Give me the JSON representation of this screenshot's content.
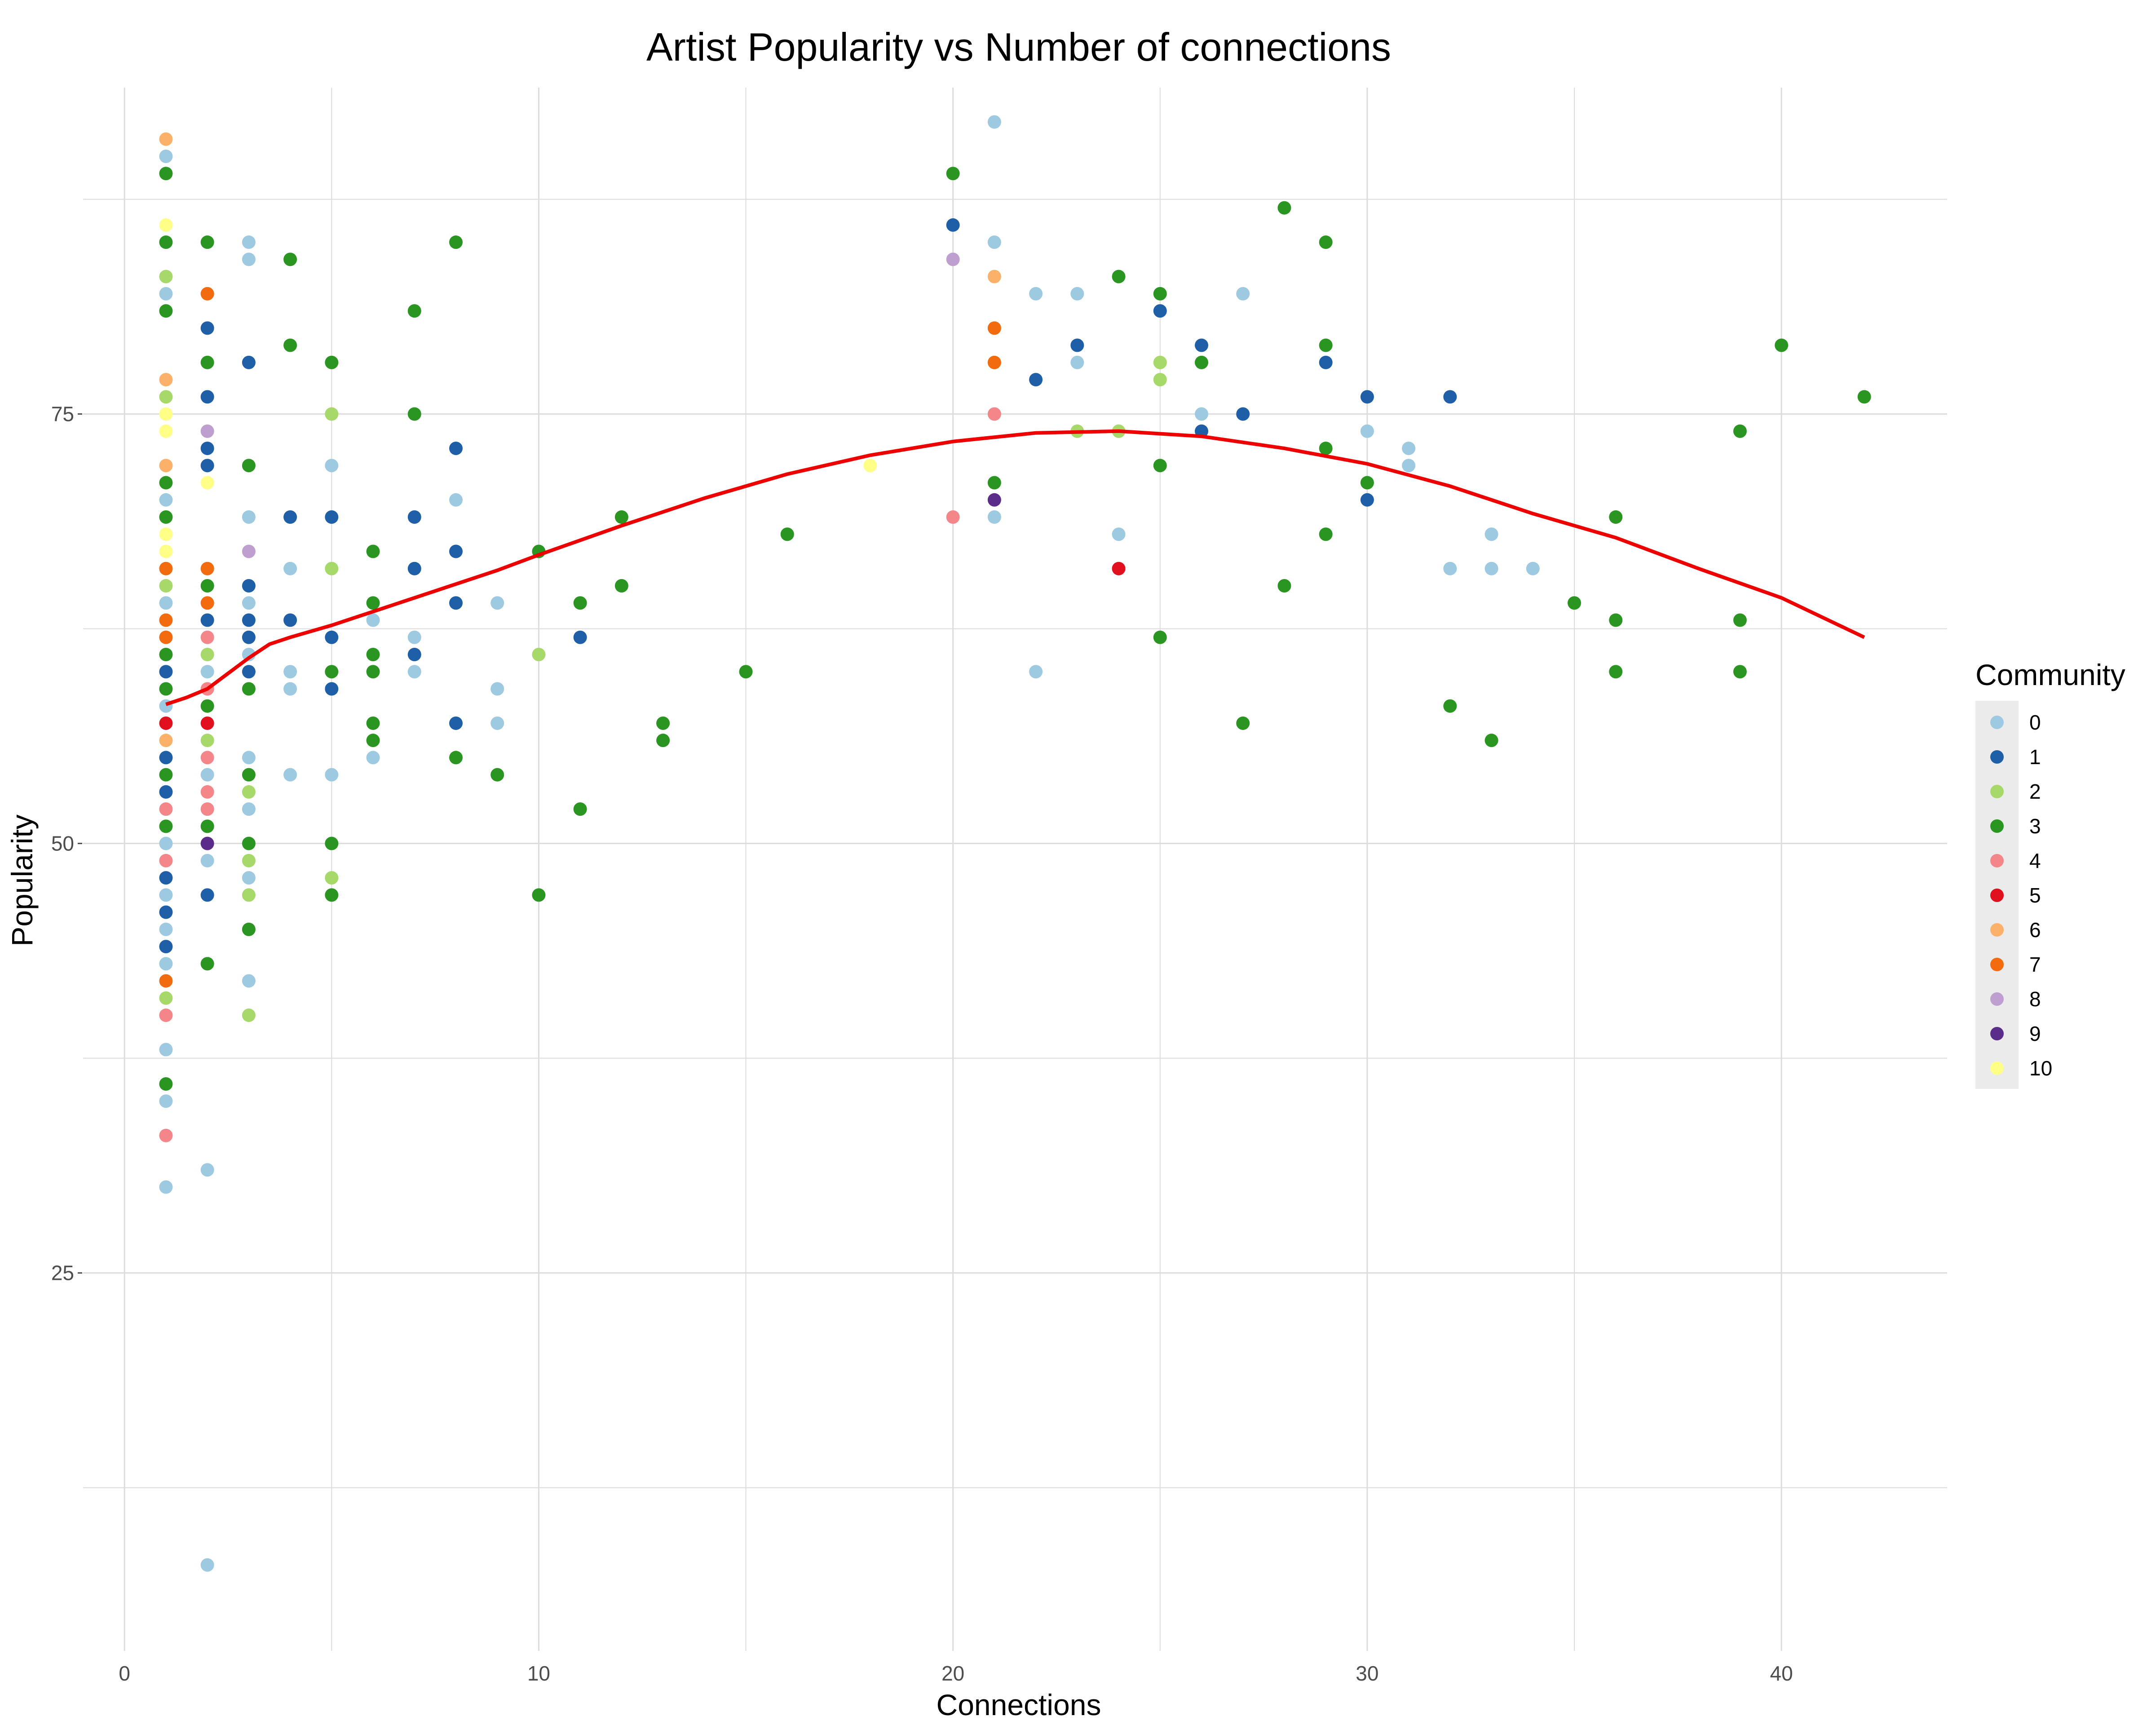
{
  "chart_data": {
    "type": "scatter",
    "title": "Artist Popularity vs Number of connections",
    "xlabel": "Connections",
    "ylabel": "Popularity",
    "xlim": [
      -1,
      44
    ],
    "ylim": [
      3,
      94
    ],
    "x_ticks": [
      0,
      10,
      20,
      30,
      40
    ],
    "y_ticks": [
      25,
      50,
      75
    ],
    "grid": true,
    "legend": {
      "title": "Community",
      "placement": "right",
      "entries": [
        {
          "label": "0",
          "color": "#9ecae1"
        },
        {
          "label": "1",
          "color": "#1f5fa8"
        },
        {
          "label": "2",
          "color": "#a6d96a"
        },
        {
          "label": "3",
          "color": "#2a9621"
        },
        {
          "label": "4",
          "color": "#f4868a"
        },
        {
          "label": "5",
          "color": "#e0101e"
        },
        {
          "label": "6",
          "color": "#fbb169"
        },
        {
          "label": "7",
          "color": "#f26b0f"
        },
        {
          "label": "8",
          "color": "#bf9fd0"
        },
        {
          "label": "9",
          "color": "#5a2d8a"
        },
        {
          "label": "10",
          "color": "#ffff88"
        }
      ]
    },
    "points": [
      [
        1,
        91,
        6
      ],
      [
        1,
        90,
        0
      ],
      [
        1,
        89,
        3
      ],
      [
        1,
        86,
        10
      ],
      [
        1,
        85,
        3
      ],
      [
        1,
        83,
        2
      ],
      [
        1,
        82,
        0
      ],
      [
        1,
        81,
        3
      ],
      [
        1,
        77,
        6
      ],
      [
        1,
        76,
        2
      ],
      [
        1,
        75,
        10
      ],
      [
        1,
        74,
        10
      ],
      [
        1,
        72,
        6
      ],
      [
        1,
        71,
        3
      ],
      [
        1,
        70,
        0
      ],
      [
        1,
        69,
        3
      ],
      [
        1,
        68,
        10
      ],
      [
        1,
        67,
        10
      ],
      [
        1,
        66,
        7
      ],
      [
        1,
        65,
        2
      ],
      [
        1,
        64,
        0
      ],
      [
        1,
        63,
        7
      ],
      [
        1,
        62,
        7
      ],
      [
        1,
        61,
        3
      ],
      [
        1,
        60,
        1
      ],
      [
        1,
        59,
        3
      ],
      [
        1,
        58,
        0
      ],
      [
        1,
        57,
        5
      ],
      [
        1,
        56,
        6
      ],
      [
        1,
        55,
        1
      ],
      [
        1,
        54,
        3
      ],
      [
        1,
        53,
        1
      ],
      [
        1,
        52,
        4
      ],
      [
        1,
        51,
        3
      ],
      [
        1,
        50,
        0
      ],
      [
        1,
        49,
        4
      ],
      [
        1,
        48,
        1
      ],
      [
        1,
        47,
        0
      ],
      [
        1,
        46,
        1
      ],
      [
        1,
        45,
        0
      ],
      [
        1,
        44,
        1
      ],
      [
        1,
        43,
        0
      ],
      [
        1,
        42,
        7
      ],
      [
        1,
        41,
        2
      ],
      [
        1,
        40,
        4
      ],
      [
        1,
        38,
        0
      ],
      [
        1,
        36,
        3
      ],
      [
        1,
        35,
        0
      ],
      [
        1,
        33,
        4
      ],
      [
        1,
        30,
        0
      ],
      [
        2,
        85,
        3
      ],
      [
        2,
        82,
        7
      ],
      [
        2,
        80,
        1
      ],
      [
        2,
        78,
        3
      ],
      [
        2,
        76,
        1
      ],
      [
        2,
        74,
        8
      ],
      [
        2,
        73,
        1
      ],
      [
        2,
        72,
        1
      ],
      [
        2,
        71,
        10
      ],
      [
        2,
        66,
        7
      ],
      [
        2,
        65,
        3
      ],
      [
        2,
        64,
        7
      ],
      [
        2,
        63,
        1
      ],
      [
        2,
        62,
        4
      ],
      [
        2,
        61,
        2
      ],
      [
        2,
        60,
        0
      ],
      [
        2,
        59,
        4
      ],
      [
        2,
        58,
        3
      ],
      [
        2,
        57,
        5
      ],
      [
        2,
        56,
        2
      ],
      [
        2,
        55,
        4
      ],
      [
        2,
        54,
        0
      ],
      [
        2,
        53,
        4
      ],
      [
        2,
        52,
        4
      ],
      [
        2,
        51,
        3
      ],
      [
        2,
        50,
        9
      ],
      [
        2,
        49,
        0
      ],
      [
        2,
        47,
        1
      ],
      [
        2,
        43,
        3
      ],
      [
        2,
        31,
        0
      ],
      [
        2,
        8,
        0
      ],
      [
        3,
        85,
        0
      ],
      [
        3,
        84,
        0
      ],
      [
        3,
        78,
        1
      ],
      [
        3,
        72,
        3
      ],
      [
        3,
        69,
        0
      ],
      [
        3,
        67,
        8
      ],
      [
        3,
        65,
        1
      ],
      [
        3,
        64,
        0
      ],
      [
        3,
        63,
        1
      ],
      [
        3,
        62,
        1
      ],
      [
        3,
        61,
        0
      ],
      [
        3,
        60,
        1
      ],
      [
        3,
        59,
        3
      ],
      [
        3,
        55,
        0
      ],
      [
        3,
        54,
        3
      ],
      [
        3,
        53,
        2
      ],
      [
        3,
        52,
        0
      ],
      [
        3,
        50,
        3
      ],
      [
        3,
        49,
        2
      ],
      [
        3,
        48,
        0
      ],
      [
        3,
        47,
        2
      ],
      [
        3,
        45,
        3
      ],
      [
        3,
        42,
        0
      ],
      [
        3,
        40,
        2
      ],
      [
        4,
        84,
        3
      ],
      [
        4,
        79,
        3
      ],
      [
        4,
        69,
        1
      ],
      [
        4,
        66,
        0
      ],
      [
        4,
        63,
        1
      ],
      [
        4,
        60,
        0
      ],
      [
        4,
        59,
        0
      ],
      [
        4,
        54,
        0
      ],
      [
        5,
        78,
        3
      ],
      [
        5,
        75,
        2
      ],
      [
        5,
        72,
        0
      ],
      [
        5,
        69,
        1
      ],
      [
        5,
        66,
        2
      ],
      [
        5,
        62,
        1
      ],
      [
        5,
        60,
        3
      ],
      [
        5,
        59,
        1
      ],
      [
        5,
        54,
        0
      ],
      [
        5,
        50,
        3
      ],
      [
        5,
        48,
        2
      ],
      [
        5,
        47,
        3
      ],
      [
        6,
        67,
        3
      ],
      [
        6,
        64,
        3
      ],
      [
        6,
        63,
        0
      ],
      [
        6,
        61,
        3
      ],
      [
        6,
        60,
        3
      ],
      [
        6,
        57,
        3
      ],
      [
        6,
        56,
        3
      ],
      [
        6,
        55,
        0
      ],
      [
        7,
        81,
        3
      ],
      [
        7,
        75,
        3
      ],
      [
        7,
        69,
        1
      ],
      [
        7,
        66,
        1
      ],
      [
        7,
        62,
        0
      ],
      [
        7,
        61,
        1
      ],
      [
        7,
        60,
        0
      ],
      [
        8,
        85,
        3
      ],
      [
        8,
        73,
        1
      ],
      [
        8,
        70,
        0
      ],
      [
        8,
        67,
        1
      ],
      [
        8,
        64,
        1
      ],
      [
        8,
        57,
        1
      ],
      [
        8,
        55,
        3
      ],
      [
        9,
        64,
        0
      ],
      [
        9,
        59,
        0
      ],
      [
        9,
        57,
        0
      ],
      [
        9,
        54,
        3
      ],
      [
        10,
        67,
        3
      ],
      [
        10,
        61,
        2
      ],
      [
        10,
        47,
        3
      ],
      [
        11,
        64,
        3
      ],
      [
        11,
        62,
        1
      ],
      [
        11,
        52,
        3
      ],
      [
        12,
        69,
        3
      ],
      [
        12,
        65,
        3
      ],
      [
        13,
        57,
        3
      ],
      [
        13,
        56,
        3
      ],
      [
        15,
        60,
        3
      ],
      [
        16,
        68,
        3
      ],
      [
        18,
        72,
        10
      ],
      [
        20,
        89,
        3
      ],
      [
        20,
        86,
        1
      ],
      [
        20,
        84,
        8
      ],
      [
        20,
        69,
        4
      ],
      [
        21,
        92,
        0
      ],
      [
        21,
        85,
        0
      ],
      [
        21,
        83,
        6
      ],
      [
        21,
        80,
        7
      ],
      [
        21,
        78,
        7
      ],
      [
        21,
        75,
        4
      ],
      [
        21,
        71,
        3
      ],
      [
        21,
        70,
        9
      ],
      [
        21,
        69,
        0
      ],
      [
        22,
        82,
        0
      ],
      [
        22,
        77,
        1
      ],
      [
        22,
        60,
        0
      ],
      [
        23,
        82,
        0
      ],
      [
        23,
        79,
        1
      ],
      [
        23,
        78,
        0
      ],
      [
        23,
        74,
        2
      ],
      [
        24,
        83,
        3
      ],
      [
        24,
        74,
        2
      ],
      [
        24,
        68,
        0
      ],
      [
        24,
        66,
        5
      ],
      [
        25,
        82,
        3
      ],
      [
        25,
        81,
        1
      ],
      [
        25,
        78,
        2
      ],
      [
        25,
        77,
        2
      ],
      [
        25,
        72,
        3
      ],
      [
        25,
        62,
        3
      ],
      [
        26,
        79,
        1
      ],
      [
        26,
        78,
        3
      ],
      [
        26,
        75,
        0
      ],
      [
        26,
        74,
        1
      ],
      [
        27,
        82,
        0
      ],
      [
        27,
        75,
        1
      ],
      [
        27,
        57,
        3
      ],
      [
        28,
        87,
        3
      ],
      [
        28,
        65,
        3
      ],
      [
        29,
        85,
        3
      ],
      [
        29,
        79,
        3
      ],
      [
        29,
        78,
        1
      ],
      [
        29,
        73,
        3
      ],
      [
        29,
        68,
        3
      ],
      [
        30,
        76,
        1
      ],
      [
        30,
        74,
        0
      ],
      [
        30,
        71,
        3
      ],
      [
        30,
        70,
        1
      ],
      [
        31,
        73,
        0
      ],
      [
        31,
        72,
        0
      ],
      [
        32,
        76,
        1
      ],
      [
        32,
        66,
        0
      ],
      [
        32,
        58,
        3
      ],
      [
        33,
        68,
        0
      ],
      [
        33,
        66,
        0
      ],
      [
        33,
        56,
        3
      ],
      [
        34,
        66,
        0
      ],
      [
        35,
        64,
        3
      ],
      [
        36,
        69,
        3
      ],
      [
        36,
        63,
        3
      ],
      [
        36,
        60,
        3
      ],
      [
        39,
        74,
        3
      ],
      [
        39,
        63,
        3
      ],
      [
        39,
        60,
        3
      ],
      [
        40,
        79,
        3
      ],
      [
        42,
        76,
        3
      ]
    ],
    "smooth_line": {
      "color": "#ee0000",
      "points": [
        [
          1,
          58.1
        ],
        [
          1.5,
          58.5
        ],
        [
          2,
          59
        ],
        [
          2.5,
          59.9
        ],
        [
          3,
          60.8
        ],
        [
          3.5,
          61.6
        ],
        [
          4,
          62
        ],
        [
          5,
          62.7
        ],
        [
          6,
          63.5
        ],
        [
          7,
          64.3
        ],
        [
          8,
          65.1
        ],
        [
          9,
          65.9
        ],
        [
          10,
          66.8
        ],
        [
          12,
          68.5
        ],
        [
          14,
          70.1
        ],
        [
          16,
          71.5
        ],
        [
          18,
          72.6
        ],
        [
          20,
          73.4
        ],
        [
          22,
          73.9
        ],
        [
          24,
          74
        ],
        [
          26,
          73.7
        ],
        [
          28,
          73
        ],
        [
          30,
          72.1
        ],
        [
          32,
          70.8
        ],
        [
          34,
          69.2
        ],
        [
          36,
          67.8
        ],
        [
          38,
          66
        ],
        [
          40,
          64.3
        ],
        [
          42,
          62
        ]
      ]
    }
  }
}
